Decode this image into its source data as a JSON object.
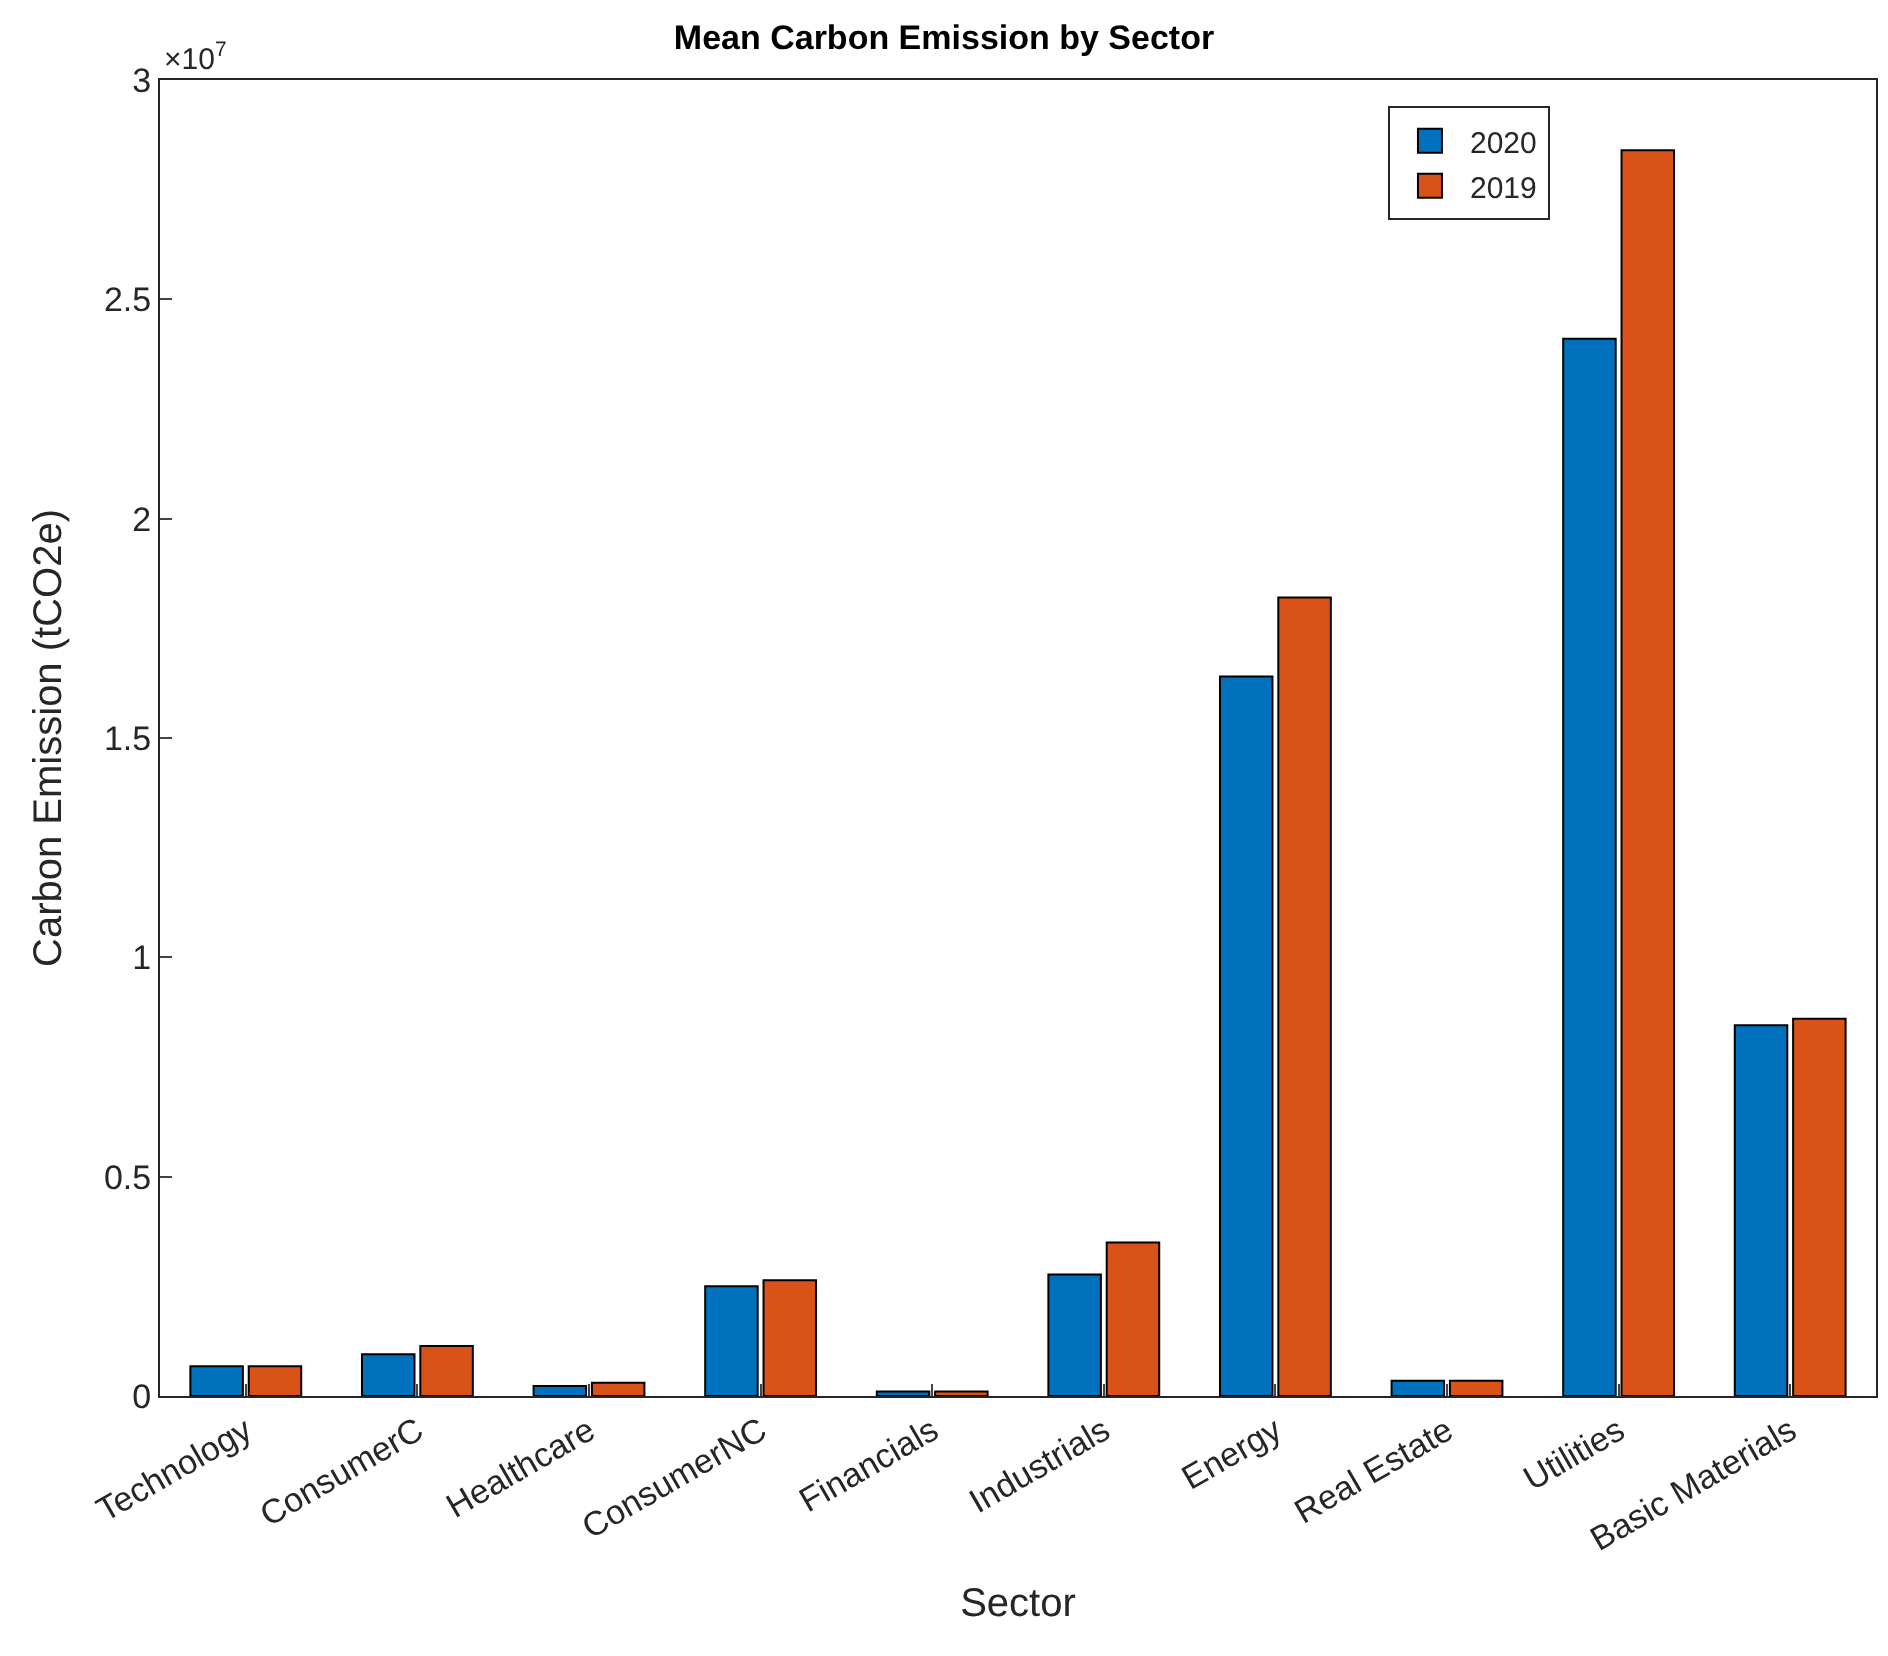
{
  "chart_data": {
    "type": "bar",
    "title": "Mean Carbon Emission by Sector",
    "xlabel": "Sector",
    "ylabel": "Carbon Emission (tCO2e)",
    "categories": [
      "Technology",
      "ConsumerC",
      "Healthcare",
      "ConsumerNC",
      "Financials",
      "Industrials",
      "Energy",
      "Real Estate",
      "Utilities",
      "Basic Materials"
    ],
    "series": [
      {
        "name": "2020",
        "color": "#0072bd",
        "values": [
          0.068,
          0.095,
          0.023,
          0.25,
          0.01,
          0.277,
          1.64,
          0.035,
          2.41,
          0.845
        ]
      },
      {
        "name": "2019",
        "color": "#d95319",
        "values": [
          0.068,
          0.114,
          0.03,
          0.264,
          0.01,
          0.35,
          1.82,
          0.035,
          2.84,
          0.86
        ]
      }
    ],
    "ylim": [
      0,
      3
    ],
    "yticks": [
      0,
      0.5,
      1,
      1.5,
      2,
      2.5,
      3
    ],
    "annotations": [
      "×10$^{7}$"
    ],
    "legend": "top right"
  }
}
